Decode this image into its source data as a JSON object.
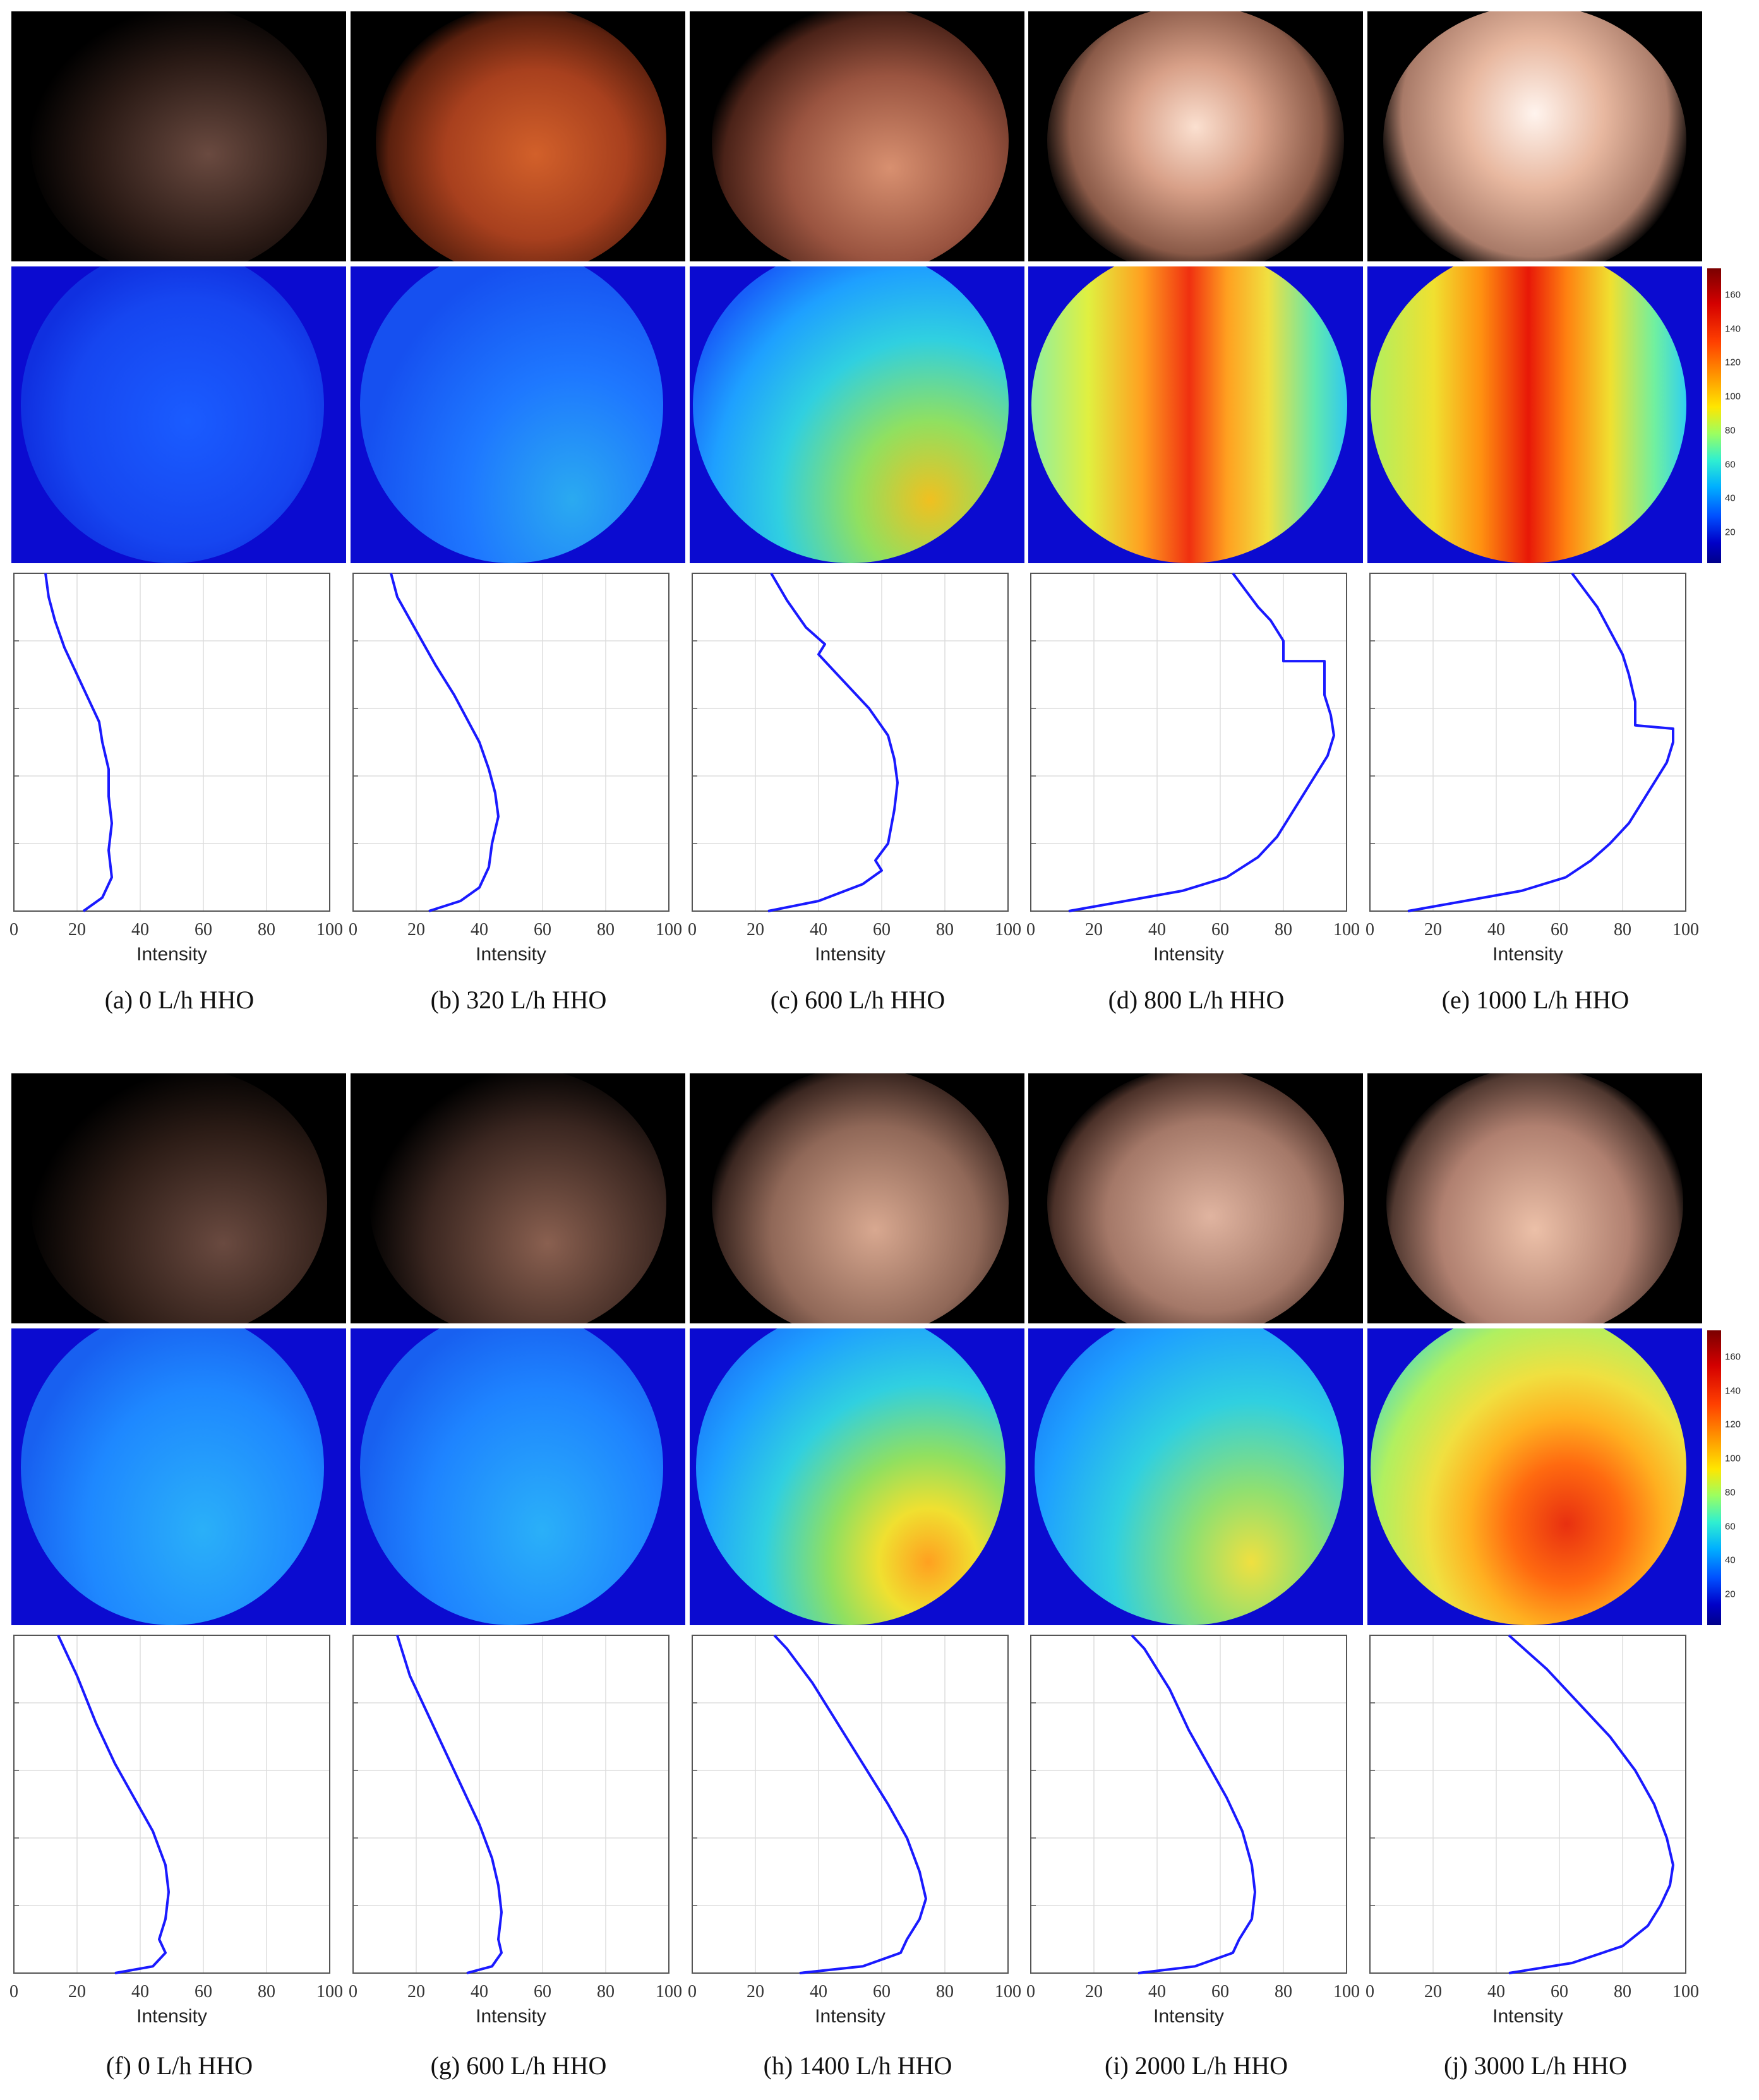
{
  "colors": {
    "curve": "#1a1aff",
    "grid": "#dddddd",
    "axis": "#555555"
  },
  "colorbar": {
    "ticks": [
      "160",
      "140",
      "120",
      "100",
      "80",
      "60",
      "40",
      "20"
    ]
  },
  "x_axis": {
    "label": "Intensity",
    "tick_labels": [
      "0",
      "20",
      "40",
      "60",
      "80",
      "100"
    ]
  },
  "chart_data": [
    {
      "id": "a",
      "type": "line",
      "caption": "(a) 0 L/h HHO",
      "xlabel": "Intensity",
      "xlim": [
        0,
        100
      ],
      "ylim": [
        0,
        1
      ],
      "x": [
        22,
        28,
        31,
        30,
        31,
        30,
        30,
        28,
        27,
        24,
        20,
        16,
        13,
        11,
        10
      ],
      "y": [
        0,
        0.04,
        0.1,
        0.18,
        0.26,
        0.34,
        0.42,
        0.5,
        0.56,
        0.62,
        0.7,
        0.78,
        0.86,
        0.93,
        1
      ]
    },
    {
      "id": "b",
      "type": "line",
      "caption": "(b) 320 L/h HHO",
      "xlabel": "Intensity",
      "xlim": [
        0,
        100
      ],
      "ylim": [
        0,
        1
      ],
      "x": [
        24,
        34,
        40,
        43,
        44,
        46,
        45,
        43,
        40,
        36,
        32,
        26,
        20,
        14,
        12
      ],
      "y": [
        0,
        0.03,
        0.07,
        0.13,
        0.2,
        0.28,
        0.35,
        0.42,
        0.5,
        0.57,
        0.64,
        0.73,
        0.83,
        0.93,
        1
      ]
    },
    {
      "id": "c",
      "type": "line",
      "caption": "(c) 600 L/h HHO",
      "xlabel": "Intensity",
      "xlim": [
        0,
        100
      ],
      "ylim": [
        0,
        1
      ],
      "x": [
        24,
        40,
        54,
        60,
        58,
        62,
        64,
        65,
        64,
        62,
        56,
        48,
        40,
        42,
        36,
        30,
        25
      ],
      "y": [
        0,
        0.03,
        0.08,
        0.12,
        0.15,
        0.2,
        0.3,
        0.38,
        0.45,
        0.52,
        0.6,
        0.68,
        0.76,
        0.79,
        0.84,
        0.92,
        1
      ]
    },
    {
      "id": "d",
      "type": "line",
      "caption": "(d) 800 L/h HHO",
      "xlabel": "Intensity",
      "xlim": [
        0,
        100
      ],
      "ylim": [
        0,
        1
      ],
      "x": [
        12,
        30,
        48,
        62,
        72,
        78,
        82,
        86,
        90,
        94,
        96,
        95,
        93,
        93,
        80,
        80,
        76,
        72,
        68,
        64
      ],
      "y": [
        0,
        0.03,
        0.06,
        0.1,
        0.16,
        0.22,
        0.28,
        0.34,
        0.4,
        0.46,
        0.52,
        0.58,
        0.64,
        0.74,
        0.74,
        0.8,
        0.86,
        0.9,
        0.95,
        1
      ]
    },
    {
      "id": "e",
      "type": "line",
      "caption": "(e) 1000 L/h HHO",
      "xlabel": "Intensity",
      "xlim": [
        0,
        100
      ],
      "ylim": [
        0,
        1
      ],
      "x": [
        12,
        30,
        48,
        62,
        70,
        76,
        82,
        86,
        90,
        94,
        96,
        96,
        84,
        84,
        82,
        80,
        76,
        72,
        68,
        64
      ],
      "y": [
        0,
        0.03,
        0.06,
        0.1,
        0.15,
        0.2,
        0.26,
        0.32,
        0.38,
        0.44,
        0.5,
        0.54,
        0.55,
        0.62,
        0.7,
        0.76,
        0.83,
        0.9,
        0.95,
        1
      ]
    },
    {
      "id": "f",
      "type": "line",
      "caption": "(f) 0 L/h HHO",
      "xlabel": "Intensity",
      "xlim": [
        0,
        100
      ],
      "ylim": [
        0,
        1
      ],
      "x": [
        32,
        44,
        48,
        46,
        48,
        49,
        48,
        44,
        38,
        32,
        26,
        20,
        14
      ],
      "y": [
        0,
        0.02,
        0.06,
        0.1,
        0.16,
        0.24,
        0.32,
        0.42,
        0.52,
        0.62,
        0.74,
        0.88,
        1
      ]
    },
    {
      "id": "g",
      "type": "line",
      "caption": "(g) 600 L/h HHO",
      "xlabel": "Intensity",
      "xlim": [
        0,
        100
      ],
      "ylim": [
        0,
        1
      ],
      "x": [
        36,
        44,
        47,
        46,
        47,
        46,
        44,
        40,
        35,
        30,
        24,
        18,
        14
      ],
      "y": [
        0,
        0.02,
        0.06,
        0.1,
        0.18,
        0.26,
        0.34,
        0.44,
        0.54,
        0.64,
        0.76,
        0.88,
        1
      ]
    },
    {
      "id": "h",
      "type": "line",
      "caption": "(h) 1400 L/h HHO",
      "xlabel": "Intensity",
      "xlim": [
        0,
        100
      ],
      "ylim": [
        0,
        1
      ],
      "x": [
        34,
        54,
        66,
        68,
        72,
        74,
        72,
        68,
        62,
        54,
        46,
        38,
        30,
        26
      ],
      "y": [
        0,
        0.02,
        0.06,
        0.1,
        0.16,
        0.22,
        0.3,
        0.4,
        0.5,
        0.62,
        0.74,
        0.86,
        0.96,
        1
      ]
    },
    {
      "id": "i",
      "type": "line",
      "caption": "(i) 2000 L/h HHO",
      "xlabel": "Intensity",
      "xlim": [
        0,
        100
      ],
      "ylim": [
        0,
        1
      ],
      "x": [
        34,
        52,
        64,
        66,
        70,
        71,
        70,
        67,
        62,
        56,
        50,
        44,
        36,
        32
      ],
      "y": [
        0,
        0.02,
        0.06,
        0.1,
        0.16,
        0.24,
        0.32,
        0.42,
        0.52,
        0.62,
        0.72,
        0.84,
        0.96,
        1
      ]
    },
    {
      "id": "j",
      "type": "line",
      "caption": "(j) 3000 L/h HHO",
      "xlabel": "Intensity",
      "xlim": [
        0,
        100
      ],
      "ylim": [
        0,
        1
      ],
      "x": [
        44,
        64,
        80,
        88,
        92,
        95,
        96,
        94,
        90,
        84,
        76,
        66,
        56,
        44
      ],
      "y": [
        0,
        0.03,
        0.08,
        0.14,
        0.2,
        0.26,
        0.32,
        0.4,
        0.5,
        0.6,
        0.7,
        0.8,
        0.9,
        1
      ]
    }
  ]
}
